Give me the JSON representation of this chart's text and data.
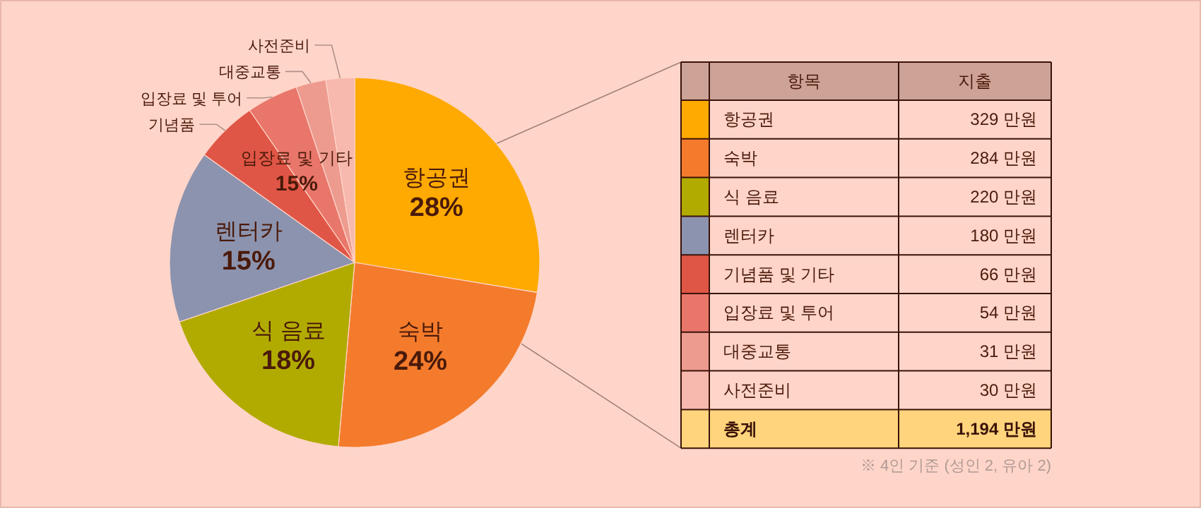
{
  "chart_data": [
    {
      "type": "pie",
      "categories": [
        "항공권",
        "숙박",
        "식 음료",
        "렌터카",
        "기념품",
        "입장료 및 투어",
        "대중교통",
        "사전준비"
      ],
      "values": [
        27.6,
        23.8,
        18.4,
        15.1,
        5.5,
        4.5,
        2.6,
        2.5
      ],
      "colors": [
        "#ffaa00",
        "#f47b2c",
        "#b1ab00",
        "#8c93ae",
        "#e05646",
        "#e9766a",
        "#ee9b8f",
        "#f7b8ae"
      ],
      "value_labels": [
        "28%",
        "24%",
        "18%",
        "15%",
        null,
        null,
        null,
        null
      ],
      "annotations": [
        {
          "text": "입장료 및 기타\n15%",
          "x": "기념품"
        }
      ]
    },
    {
      "type": "other",
      "categories": [
        "항공권",
        "숙박",
        "식 음료",
        "렌터카",
        "기념품 및 기타",
        "입장료 및 투어",
        "대중교통",
        "사전준비"
      ],
      "colors": [
        "#ffaa00",
        "#f47b2c",
        "#b1ab00",
        "#8c93ae",
        "#e05646",
        "#e9766a",
        "#ee9b8f",
        "#f7b8ae"
      ],
      "value_labels": [
        "329 만원",
        "284 만원",
        "220 만원",
        "180 만원",
        "66 만원",
        "54 만원",
        "31 만원",
        "30 만원"
      ],
      "totals": [
        "1,194 만원"
      ],
      "annotations": [
        "항목",
        "지출",
        "총계",
        "※ 4인 기준 (성인 2, 유아 2)"
      ]
    }
  ]
}
